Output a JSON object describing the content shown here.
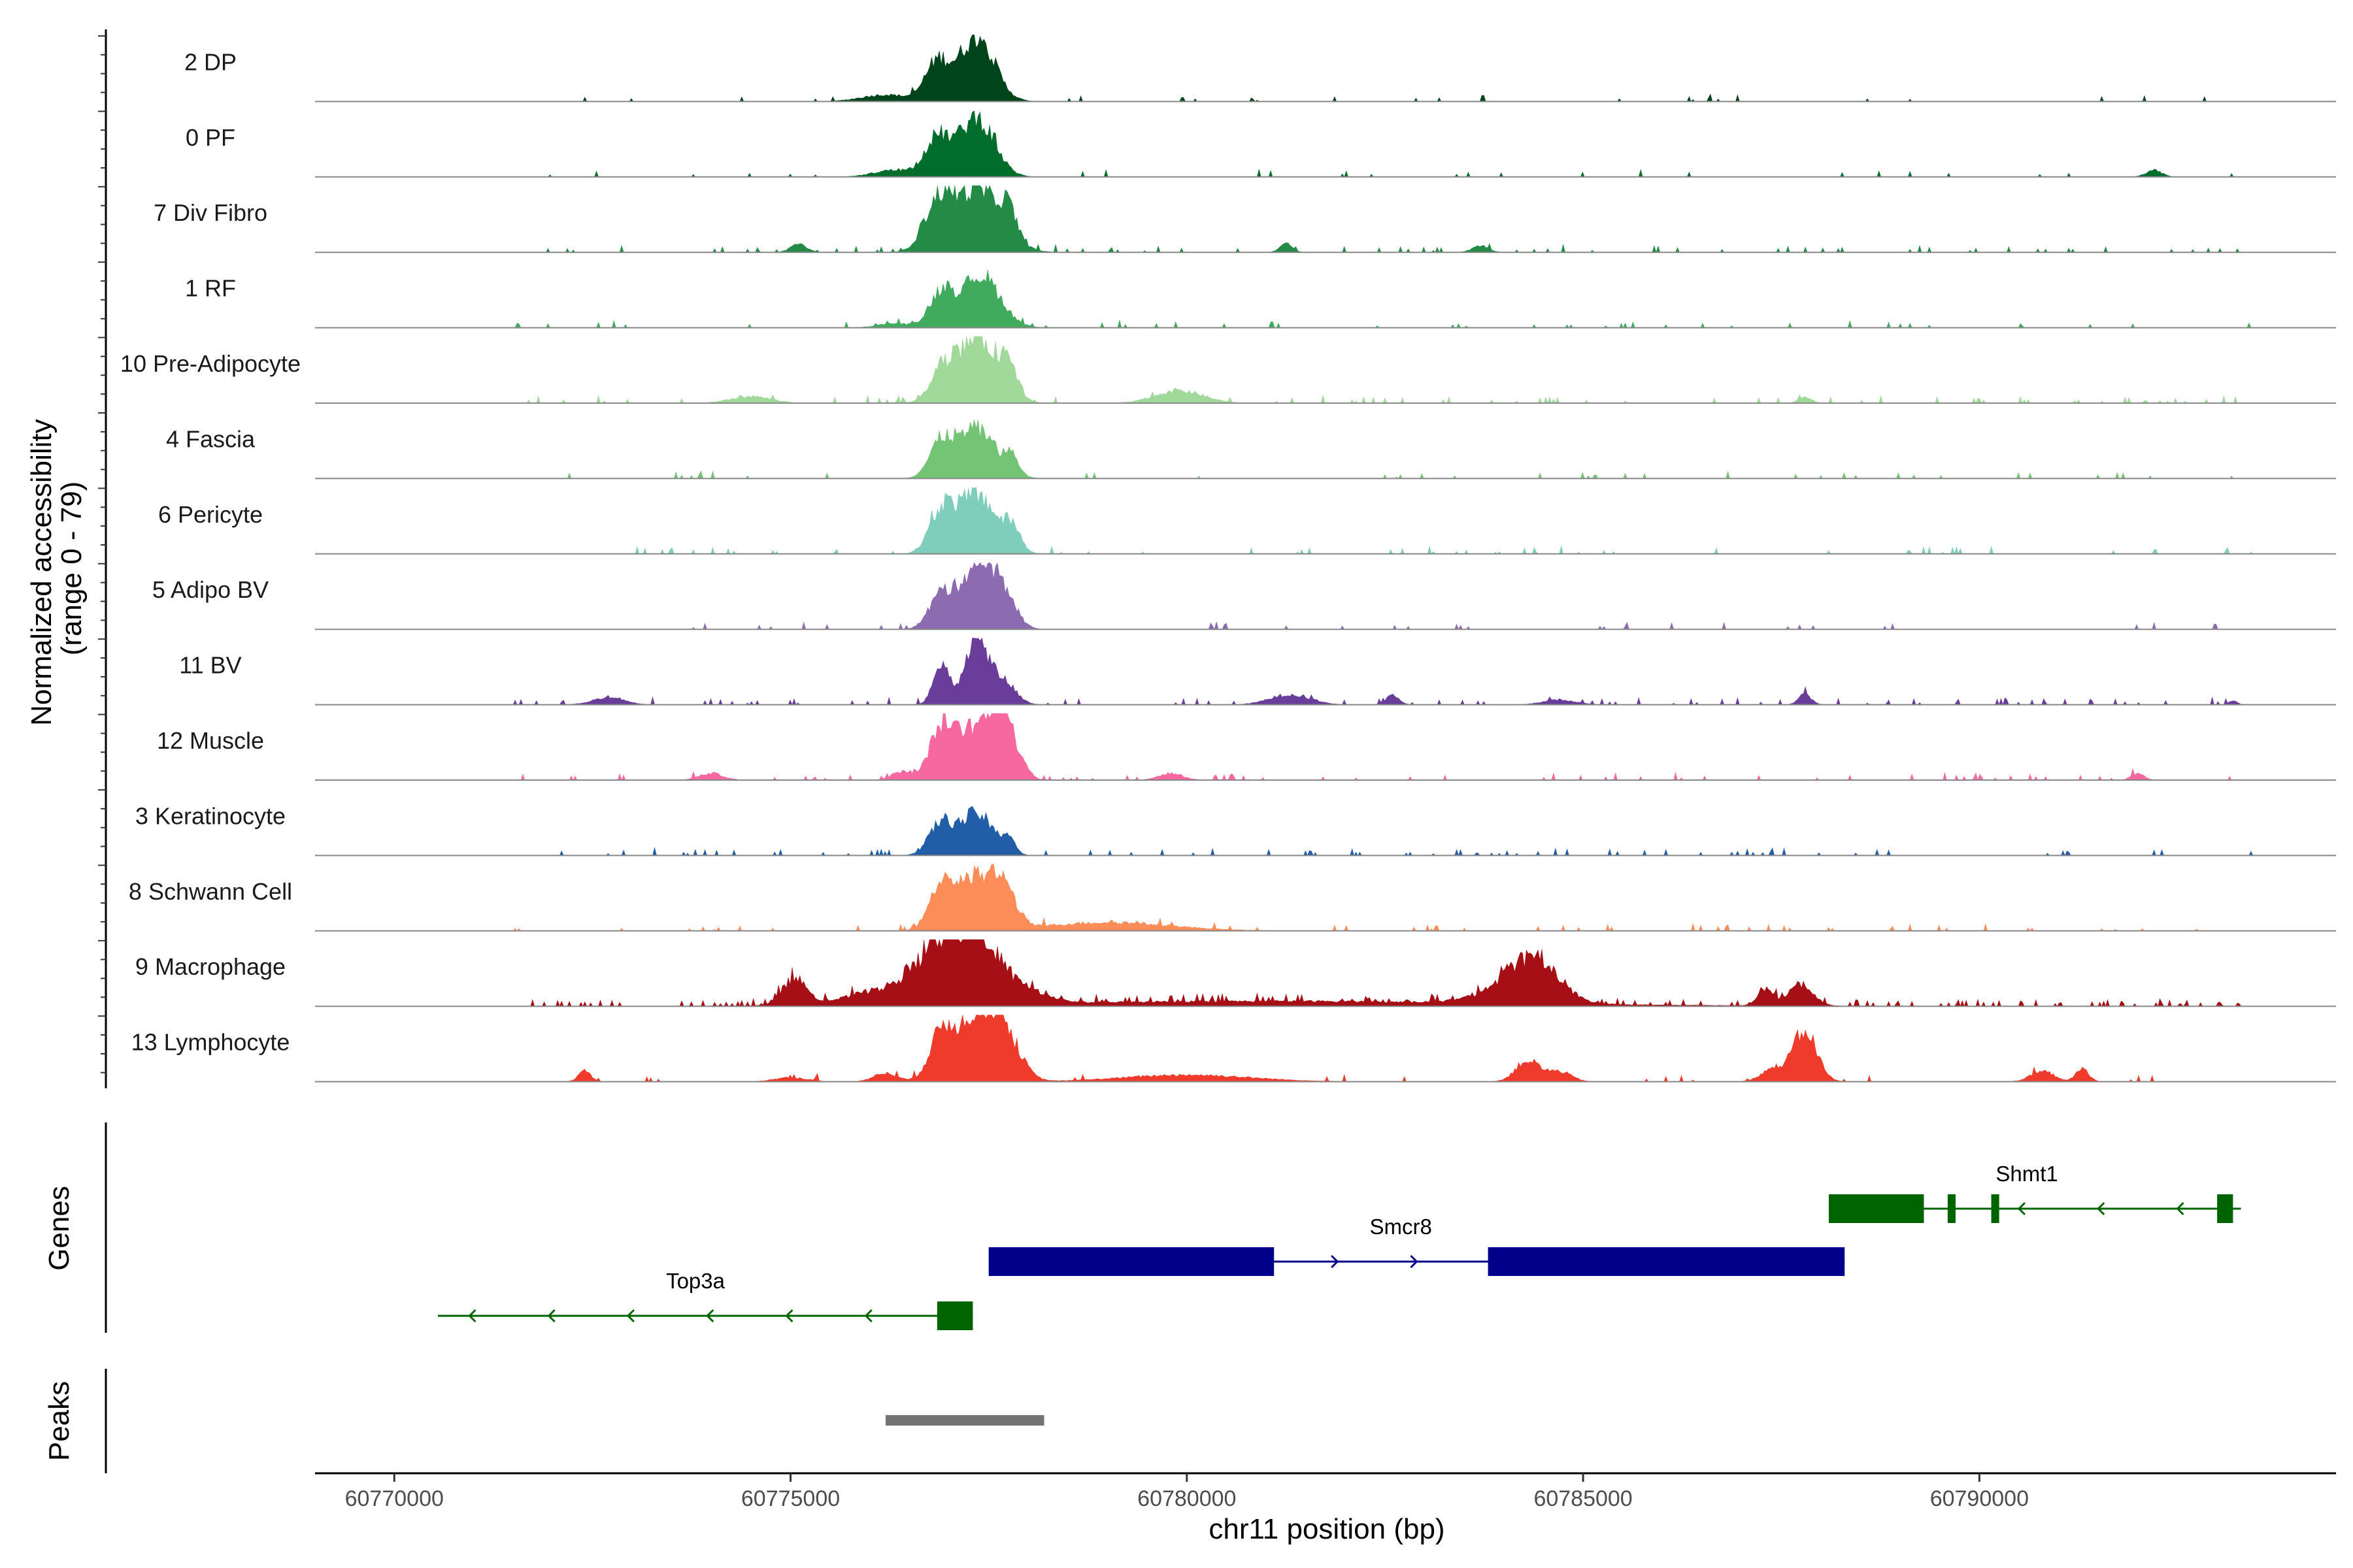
{
  "chart_data": {
    "type": "genome-track",
    "region": {
      "chromosome": "chr11",
      "start": 60769000,
      "end": 60794500
    },
    "xlabel": "chr11 position (bp)",
    "x_ticks": [
      60770000,
      60775000,
      60780000,
      60785000,
      60790000
    ],
    "x_tick_labels": [
      "60770000",
      "60775000",
      "60780000",
      "60785000",
      "60790000"
    ],
    "ylabel_line1": "Normalized accessibility",
    "ylabel_line2": "(range 0 - 79)",
    "y_range": [
      0,
      79
    ],
    "track_panel_labels": {
      "genes": "Genes",
      "peaks": "Peaks"
    },
    "coverage_tracks": [
      {
        "label": "2 DP",
        "color": "#00441b",
        "noise": 0.04,
        "peaks": [
          [
            60776850,
            150,
            45
          ],
          [
            60777350,
            220,
            78
          ],
          [
            60776200,
            300,
            8
          ]
        ]
      },
      {
        "label": "0 PF",
        "color": "#006d2c",
        "noise": 0.05,
        "peaks": [
          [
            60776850,
            160,
            45
          ],
          [
            60777350,
            220,
            70
          ],
          [
            60776300,
            250,
            8
          ],
          [
            60792200,
            100,
            8
          ]
        ]
      },
      {
        "label": "7 Div Fibro",
        "color": "#238b45",
        "noise": 0.06,
        "peaks": [
          [
            60776850,
            170,
            50
          ],
          [
            60777350,
            300,
            75
          ],
          [
            60777750,
            100,
            30
          ],
          [
            60775100,
            100,
            10
          ],
          [
            60781250,
            80,
            10
          ],
          [
            60783700,
            100,
            8
          ]
        ]
      },
      {
        "label": "1 RF",
        "color": "#41ab5d",
        "noise": 0.05,
        "peaks": [
          [
            60776900,
            150,
            40
          ],
          [
            60777400,
            240,
            62
          ],
          [
            60776300,
            200,
            5
          ]
        ]
      },
      {
        "label": "10 Pre-Adipocyte",
        "color": "#a1d99b",
        "noise": 0.08,
        "peaks": [
          [
            60776900,
            150,
            32
          ],
          [
            60777350,
            250,
            78
          ],
          [
            60777750,
            120,
            30
          ],
          [
            60779900,
            300,
            15
          ],
          [
            60774500,
            250,
            8
          ],
          [
            60787800,
            80,
            8
          ]
        ]
      },
      {
        "label": "4 Fascia",
        "color": "#74c476",
        "noise": 0.05,
        "peaks": [
          [
            60776900,
            150,
            38
          ],
          [
            60777350,
            250,
            58
          ],
          [
            60777800,
            80,
            20
          ]
        ]
      },
      {
        "label": "6 Pericyte",
        "color": "#7fcdbb",
        "noise": 0.05,
        "peaks": [
          [
            60776900,
            150,
            45
          ],
          [
            60777350,
            250,
            70
          ],
          [
            60777800,
            100,
            25
          ]
        ]
      },
      {
        "label": "5 Adipo BV",
        "color": "#8c6bb1",
        "noise": 0.05,
        "peaks": [
          [
            60776900,
            150,
            40
          ],
          [
            60777350,
            200,
            78
          ],
          [
            60777700,
            150,
            38
          ]
        ]
      },
      {
        "label": "11 BV",
        "color": "#6a3d9a",
        "noise": 0.1,
        "peaks": [
          [
            60776900,
            100,
            45
          ],
          [
            60777350,
            150,
            78
          ],
          [
            60777700,
            150,
            25
          ],
          [
            60781300,
            250,
            12
          ],
          [
            60782600,
            80,
            12
          ],
          [
            60787800,
            80,
            12
          ],
          [
            60772700,
            200,
            8
          ],
          [
            60784700,
            200,
            6
          ],
          [
            60793200,
            50,
            5
          ]
        ]
      },
      {
        "label": "12 Muscle",
        "color": "#f768a1",
        "noise": 0.09,
        "peaks": [
          [
            60776900,
            150,
            55
          ],
          [
            60777350,
            250,
            62
          ],
          [
            60777650,
            120,
            78
          ],
          [
            60777900,
            100,
            20
          ],
          [
            60774000,
            150,
            8
          ],
          [
            60776400,
            120,
            10
          ],
          [
            60779800,
            150,
            8
          ],
          [
            60792000,
            80,
            8
          ]
        ]
      },
      {
        "label": "3 Keratinocyte",
        "color": "#225ea8",
        "noise": 0.08,
        "peaks": [
          [
            60776900,
            150,
            38
          ],
          [
            60777350,
            200,
            50
          ],
          [
            60777750,
            80,
            20
          ]
        ]
      },
      {
        "label": "8 Schwann Cell",
        "color": "#fc8d59",
        "noise": 0.07,
        "peaks": [
          [
            60776900,
            150,
            50
          ],
          [
            60777350,
            250,
            62
          ],
          [
            60777700,
            150,
            35
          ],
          [
            60779000,
            800,
            10
          ]
        ]
      },
      {
        "label": "9 Macrophage",
        "color": "#a50f15",
        "noise": 0.16,
        "peaks": [
          [
            60775050,
            150,
            32
          ],
          [
            60776850,
            250,
            55
          ],
          [
            60777350,
            250,
            78
          ],
          [
            60776300,
            500,
            20
          ],
          [
            60777900,
            300,
            18
          ],
          [
            60784400,
            300,
            40
          ],
          [
            60784100,
            400,
            18
          ],
          [
            60787300,
            100,
            20
          ],
          [
            60787750,
            150,
            25
          ],
          [
            60781000,
            3000,
            6
          ]
        ]
      },
      {
        "label": "13 Lymphocyte",
        "color": "#ef3b2c",
        "noise": 0.04,
        "peaks": [
          [
            60776900,
            150,
            50
          ],
          [
            60777350,
            250,
            78
          ],
          [
            60777700,
            200,
            45
          ],
          [
            60776200,
            150,
            10
          ],
          [
            60772400,
            80,
            12
          ],
          [
            60784300,
            150,
            25
          ],
          [
            60784700,
            150,
            12
          ],
          [
            60787800,
            150,
            60
          ],
          [
            60787400,
            150,
            15
          ],
          [
            60790800,
            150,
            12
          ],
          [
            60791300,
            80,
            15
          ],
          [
            60780000,
            800,
            8
          ],
          [
            60775000,
            200,
            5
          ]
        ]
      }
    ],
    "genes": [
      {
        "name": "Top3a",
        "strand": "-",
        "color": "#006400",
        "start": 60770550,
        "end": 60777300,
        "exons": [
          [
            60776850,
            60777300
          ]
        ],
        "label_x": 60773800
      },
      {
        "name": "Smcr8",
        "strand": "+",
        "color": "#00008b",
        "start": 60777500,
        "end": 60788300,
        "exons": [
          [
            60777500,
            60781100
          ],
          [
            60783800,
            60788300
          ]
        ],
        "label_x": 60782700
      },
      {
        "name": "Shmt1",
        "strand": "-",
        "color": "#006400",
        "start": 60788100,
        "end": 60793300,
        "exons": [
          [
            60788100,
            60789300
          ],
          [
            60789600,
            60789700
          ],
          [
            60790150,
            60790250
          ],
          [
            60793000,
            60793200
          ]
        ],
        "label_x": 60790600
      }
    ],
    "peaks_region": [
      [
        60776200,
        60778200
      ]
    ],
    "peak_color": "#737373"
  }
}
